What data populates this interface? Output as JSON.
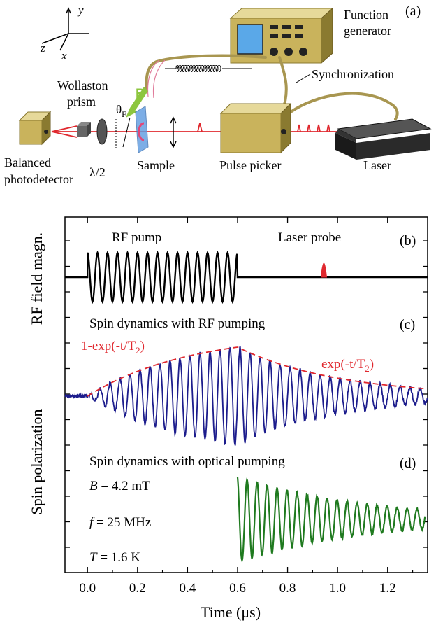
{
  "setup": {
    "panel_label": "(a)",
    "axes": {
      "y": "y",
      "z": "z",
      "x": "x"
    },
    "labels": {
      "function_generator": [
        "Function",
        "generator"
      ],
      "synchronization": "Synchronization",
      "wollaston": [
        "Wollaston",
        "prism"
      ],
      "theta": "θ",
      "theta_sub": "F",
      "b_field": "B",
      "half_wave": "λ/2",
      "sample": "Sample",
      "pulse_picker": "Pulse picker",
      "laser": "Laser",
      "photodetector": [
        "Balanced",
        "photodetector"
      ]
    },
    "colors": {
      "box": "#c9b35c",
      "box_dark": "#8a7a30",
      "cable": "#a89650",
      "beam": "#e0282e",
      "arrow_b": "#8dc63f",
      "sample": "#5d9be0",
      "sample_ring": "#e0487a",
      "screen": "#5aa8e8",
      "laser_body": "#2a2a2a"
    }
  },
  "chart_data": {
    "type": "line",
    "xlabel": "Time (μs)",
    "x_ticks": [
      0.0,
      0.2,
      0.4,
      0.6,
      0.8,
      1.0,
      1.2
    ],
    "x_tick_labels": [
      "0.0",
      "0.2",
      "0.4",
      "0.6",
      "0.8",
      "1.0",
      "1.2"
    ],
    "xlim": [
      -0.09,
      1.36
    ],
    "ylabel_top": "RF field magn.",
    "ylabel_bottom": "Spin polarization",
    "panels": {
      "b": {
        "label": "(b)",
        "rf_label": "RF pump",
        "probe_label": "Laser probe",
        "rf_start": 0.0,
        "rf_end": 0.6,
        "rf_freq_mhz": 25,
        "probe_time": 0.945,
        "color": "#000000",
        "probe_color": "#e0282e"
      },
      "c": {
        "label": "(c)",
        "title": "Spin dynamics with RF pumping",
        "rise_label": "1-exp(-t/T",
        "rise_sub": "2",
        "rise_close": ")",
        "decay_label": "exp(-t/T",
        "decay_sub": "2",
        "decay_close": ")",
        "peak_time": 0.6,
        "color": "#1c1c8c",
        "envelope_color": "#e0282e"
      },
      "d": {
        "label": "(d)",
        "title": "Spin dynamics with optical pumping",
        "params": [
          {
            "sym": "B",
            "val": " = 4.2 mT"
          },
          {
            "sym": "f",
            "val": " = 25 MHz"
          },
          {
            "sym": "T",
            "val": " = 1.6 K"
          }
        ],
        "start_time": 0.6,
        "color": "#1f7a1f"
      }
    }
  }
}
